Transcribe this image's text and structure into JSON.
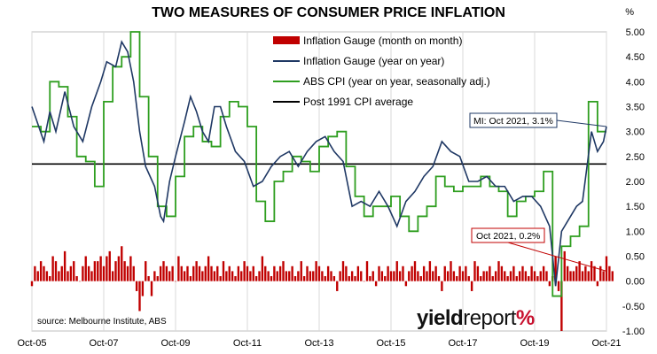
{
  "chart_data": {
    "type": "bar+line",
    "title": "TWO MEASURES OF CONSUMER PRICE INFLATION",
    "y_unit": "%",
    "ylim": [
      -1.0,
      5.0
    ],
    "y_ticks": [
      "5.00",
      "4.50",
      "4.00",
      "3.50",
      "3.00",
      "2.50",
      "2.00",
      "1.50",
      "1.00",
      "0.50",
      "0.00",
      "-0.50",
      "-1.00"
    ],
    "x_ticks": [
      "Oct-05",
      "Oct-07",
      "Oct-09",
      "Oct-11",
      "Oct-13",
      "Oct-15",
      "Oct-17",
      "Oct-19",
      "Oct-21"
    ],
    "x_range": [
      "2005-10",
      "2021-10"
    ],
    "grid": "vertical",
    "legend": "top-center",
    "source": "source: Melbourne Institute, ABS",
    "brand": {
      "part1": "yield",
      "part2": "report",
      "part3": "%"
    },
    "colors": {
      "mom": "#c00000",
      "yoy": "#1f3864",
      "abs": "#2e9e1f",
      "avg": "#000000"
    },
    "series": [
      {
        "name": "Inflation Gauge (month on month)",
        "type": "bar",
        "values": [
          -0.1,
          0.3,
          0.2,
          0.4,
          0.3,
          0.2,
          0.1,
          0.5,
          0.4,
          0.2,
          0.3,
          0.6,
          0.2,
          0.3,
          0.4,
          0.1,
          0.0,
          0.3,
          0.5,
          0.3,
          0.2,
          0.4,
          0.4,
          0.5,
          0.3,
          0.5,
          0.6,
          0.2,
          0.4,
          0.5,
          0.7,
          0.4,
          0.3,
          0.5,
          0.3,
          -0.2,
          -0.6,
          -0.3,
          0.4,
          0.1,
          -0.3,
          0.2,
          0.1,
          0.3,
          0.4,
          0.3,
          0.2,
          0.3,
          0.0,
          0.5,
          0.3,
          0.2,
          0.3,
          0.1,
          0.3,
          0.4,
          0.3,
          0.2,
          0.3,
          0.5,
          0.3,
          0.2,
          0.3,
          0.1,
          0.4,
          0.2,
          0.3,
          0.2,
          0.1,
          0.3,
          0.2,
          0.4,
          0.3,
          0.2,
          0.3,
          0.1,
          0.2,
          0.5,
          0.3,
          0.2,
          0.1,
          0.3,
          0.2,
          0.3,
          0.4,
          0.2,
          0.2,
          0.3,
          0.1,
          0.2,
          0.4,
          0.1,
          0.3,
          0.2,
          0.2,
          0.4,
          0.3,
          0.2,
          0.1,
          0.3,
          0.2,
          0.1,
          -0.2,
          0.2,
          0.4,
          0.3,
          0.1,
          0.2,
          0.1,
          0.3,
          0.2,
          0.0,
          0.4,
          0.1,
          0.2,
          -0.1,
          0.3,
          0.2,
          0.1,
          0.3,
          0.2,
          0.2,
          0.4,
          0.2,
          0.3,
          -0.1,
          0.2,
          0.3,
          0.4,
          0.2,
          0.1,
          0.3,
          0.2,
          0.4,
          0.2,
          0.3,
          0.1,
          -0.2,
          0.3,
          0.2,
          0.4,
          0.2,
          0.1,
          0.3,
          0.2,
          0.3,
          0.1,
          -0.2,
          0.4,
          0.3,
          0.1,
          0.2,
          0.2,
          0.3,
          0.1,
          0.2,
          0.4,
          0.3,
          0.2,
          0.1,
          0.2,
          0.3,
          0.1,
          0.2,
          0.3,
          0.2,
          0.1,
          0.3,
          0.2,
          0.1,
          0.2,
          0.3,
          0.2,
          -0.1,
          0.1,
          0.5,
          -0.2,
          -1.0,
          0.6,
          0.3,
          0.2,
          0.2,
          0.3,
          0.4,
          0.2,
          0.3,
          0.2,
          0.4,
          0.3,
          -0.1,
          0.3,
          0.2,
          0.5,
          0.3,
          0.2
        ]
      },
      {
        "name": "Inflation Gauge (year on year)",
        "type": "line",
        "points": [
          [
            "2005-10",
            3.5
          ],
          [
            "2006-02",
            2.8
          ],
          [
            "2006-04",
            3.4
          ],
          [
            "2006-06",
            3.0
          ],
          [
            "2006-09",
            3.8
          ],
          [
            "2006-12",
            3.1
          ],
          [
            "2007-03",
            2.8
          ],
          [
            "2007-06",
            3.5
          ],
          [
            "2007-09",
            4.0
          ],
          [
            "2007-11",
            4.4
          ],
          [
            "2008-02",
            4.3
          ],
          [
            "2008-04",
            4.8
          ],
          [
            "2008-06",
            4.6
          ],
          [
            "2008-08",
            4.0
          ],
          [
            "2008-10",
            3.0
          ],
          [
            "2008-12",
            2.3
          ],
          [
            "2009-03",
            1.9
          ],
          [
            "2009-05",
            1.3
          ],
          [
            "2009-06",
            1.2
          ],
          [
            "2009-08",
            2.0
          ],
          [
            "2009-10",
            2.5
          ],
          [
            "2010-01",
            3.2
          ],
          [
            "2010-03",
            3.7
          ],
          [
            "2010-05",
            3.4
          ],
          [
            "2010-07",
            3.0
          ],
          [
            "2010-09",
            2.8
          ],
          [
            "2010-11",
            3.5
          ],
          [
            "2011-01",
            3.5
          ],
          [
            "2011-03",
            3.1
          ],
          [
            "2011-06",
            2.6
          ],
          [
            "2011-09",
            2.4
          ],
          [
            "2011-12",
            1.9
          ],
          [
            "2012-03",
            2.0
          ],
          [
            "2012-06",
            2.3
          ],
          [
            "2012-09",
            2.5
          ],
          [
            "2012-12",
            2.6
          ],
          [
            "2013-03",
            2.3
          ],
          [
            "2013-06",
            2.6
          ],
          [
            "2013-09",
            2.8
          ],
          [
            "2013-12",
            2.9
          ],
          [
            "2014-03",
            2.6
          ],
          [
            "2014-06",
            2.4
          ],
          [
            "2014-09",
            1.5
          ],
          [
            "2014-12",
            1.6
          ],
          [
            "2015-03",
            1.5
          ],
          [
            "2015-06",
            1.8
          ],
          [
            "2015-09",
            1.5
          ],
          [
            "2015-12",
            1.1
          ],
          [
            "2016-03",
            1.6
          ],
          [
            "2016-06",
            1.8
          ],
          [
            "2016-09",
            2.1
          ],
          [
            "2016-12",
            2.3
          ],
          [
            "2017-03",
            2.8
          ],
          [
            "2017-06",
            2.6
          ],
          [
            "2017-09",
            2.5
          ],
          [
            "2017-12",
            2.0
          ],
          [
            "2018-03",
            2.0
          ],
          [
            "2018-06",
            2.1
          ],
          [
            "2018-09",
            1.9
          ],
          [
            "2018-12",
            1.9
          ],
          [
            "2019-03",
            1.6
          ],
          [
            "2019-06",
            1.7
          ],
          [
            "2019-09",
            1.7
          ],
          [
            "2019-12",
            1.5
          ],
          [
            "2020-03",
            1.1
          ],
          [
            "2020-05",
            -0.1
          ],
          [
            "2020-07",
            1.0
          ],
          [
            "2020-09",
            1.2
          ],
          [
            "2020-12",
            1.5
          ],
          [
            "2021-02",
            1.6
          ],
          [
            "2021-05",
            3.0
          ],
          [
            "2021-07",
            2.6
          ],
          [
            "2021-09",
            2.8
          ],
          [
            "2021-10",
            3.1
          ]
        ]
      },
      {
        "name": "ABS CPI (year on year, seasonally adj.)",
        "type": "step",
        "points": [
          [
            "2005-10",
            3.1
          ],
          [
            "2006-01",
            3.0
          ],
          [
            "2006-04",
            4.0
          ],
          [
            "2006-07",
            3.9
          ],
          [
            "2006-10",
            3.3
          ],
          [
            "2007-01",
            2.5
          ],
          [
            "2007-04",
            2.4
          ],
          [
            "2007-07",
            1.9
          ],
          [
            "2007-10",
            3.6
          ],
          [
            "2008-01",
            4.3
          ],
          [
            "2008-04",
            4.5
          ],
          [
            "2008-07",
            5.0
          ],
          [
            "2008-10",
            3.7
          ],
          [
            "2009-01",
            2.5
          ],
          [
            "2009-04",
            1.5
          ],
          [
            "2009-07",
            1.3
          ],
          [
            "2009-10",
            2.1
          ],
          [
            "2010-01",
            2.9
          ],
          [
            "2010-04",
            3.1
          ],
          [
            "2010-07",
            2.8
          ],
          [
            "2010-10",
            2.7
          ],
          [
            "2011-01",
            3.3
          ],
          [
            "2011-04",
            3.6
          ],
          [
            "2011-07",
            3.5
          ],
          [
            "2011-10",
            3.1
          ],
          [
            "2012-01",
            1.6
          ],
          [
            "2012-04",
            1.2
          ],
          [
            "2012-07",
            2.0
          ],
          [
            "2012-10",
            2.2
          ],
          [
            "2013-01",
            2.5
          ],
          [
            "2013-04",
            2.4
          ],
          [
            "2013-07",
            2.2
          ],
          [
            "2013-10",
            2.7
          ],
          [
            "2014-01",
            2.9
          ],
          [
            "2014-04",
            3.0
          ],
          [
            "2014-07",
            2.3
          ],
          [
            "2014-10",
            1.7
          ],
          [
            "2015-01",
            1.3
          ],
          [
            "2015-04",
            1.5
          ],
          [
            "2015-07",
            1.5
          ],
          [
            "2015-10",
            1.7
          ],
          [
            "2016-01",
            1.3
          ],
          [
            "2016-04",
            1.0
          ],
          [
            "2016-07",
            1.3
          ],
          [
            "2016-10",
            1.5
          ],
          [
            "2017-01",
            2.1
          ],
          [
            "2017-04",
            1.9
          ],
          [
            "2017-07",
            1.8
          ],
          [
            "2017-10",
            1.9
          ],
          [
            "2018-01",
            1.9
          ],
          [
            "2018-04",
            2.1
          ],
          [
            "2018-07",
            1.9
          ],
          [
            "2018-10",
            1.8
          ],
          [
            "2019-01",
            1.3
          ],
          [
            "2019-04",
            1.6
          ],
          [
            "2019-07",
            1.7
          ],
          [
            "2019-10",
            1.8
          ],
          [
            "2020-01",
            2.2
          ],
          [
            "2020-04",
            -0.3
          ],
          [
            "2020-07",
            0.7
          ],
          [
            "2020-10",
            0.9
          ],
          [
            "2021-01",
            1.1
          ],
          [
            "2021-04",
            3.6
          ],
          [
            "2021-07",
            3.0
          ],
          [
            "2021-10",
            3.0
          ]
        ]
      },
      {
        "name": "Post 1991 CPI average",
        "type": "hline",
        "value": 2.35
      }
    ],
    "annotations": [
      {
        "text": "MI: Oct 2021, 3.1%",
        "target": [
          "2021-10",
          3.1
        ]
      },
      {
        "text": "Oct 2021, 0.2%",
        "target": [
          "2021-10",
          0.2
        ]
      }
    ]
  }
}
